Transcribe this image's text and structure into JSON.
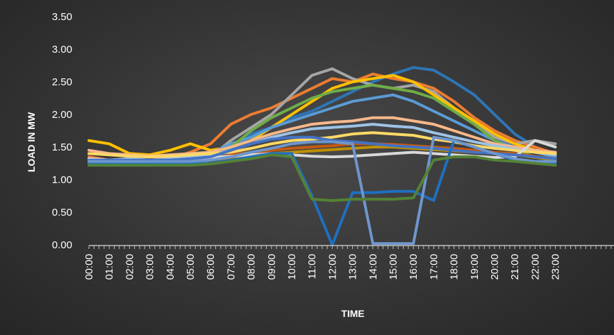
{
  "chart_data": {
    "type": "line",
    "xlabel": "TIME",
    "ylabel": "LOAD IN MW",
    "ylim": [
      0,
      3.5
    ],
    "yticks": [
      "0.00",
      "0.50",
      "1.00",
      "1.50",
      "2.00",
      "2.50",
      "3.00",
      "3.50"
    ],
    "xticks": [
      "00:00",
      "01:00",
      "02:00",
      "03:00",
      "04:00",
      "05:00",
      "06:00",
      "07:00",
      "08:00",
      "09:00",
      "10:00",
      "11:00",
      "12:00",
      "13:00",
      "14:00",
      "15:00",
      "16:00",
      "17:00",
      "18:00",
      "19:00",
      "20:00",
      "21:00",
      "22:00",
      "23:00"
    ],
    "grid": false,
    "legend": "none",
    "series": [
      {
        "color": "#2e75b6",
        "values": [
          1.28,
          1.25,
          1.26,
          1.24,
          1.3,
          1.32,
          1.3,
          1.45,
          1.7,
          1.8,
          1.95,
          2.05,
          2.2,
          2.35,
          2.5,
          2.62,
          2.72,
          2.68,
          2.5,
          2.3,
          2.0,
          1.7,
          1.5,
          1.35
        ]
      },
      {
        "color": "#ed7d31",
        "values": [
          1.35,
          1.3,
          1.32,
          1.3,
          1.33,
          1.42,
          1.55,
          1.85,
          2.0,
          2.1,
          2.25,
          2.4,
          2.55,
          2.5,
          2.62,
          2.55,
          2.5,
          2.4,
          2.2,
          1.95,
          1.75,
          1.6,
          1.5,
          1.4
        ]
      },
      {
        "color": "#a5a5a5",
        "values": [
          1.25,
          1.24,
          1.25,
          1.23,
          1.25,
          1.28,
          1.35,
          1.6,
          1.8,
          2.0,
          2.3,
          2.6,
          2.7,
          2.55,
          2.45,
          2.4,
          2.45,
          2.35,
          2.1,
          1.85,
          1.65,
          1.55,
          1.6,
          1.55
        ]
      },
      {
        "color": "#ffc000",
        "values": [
          1.6,
          1.55,
          1.4,
          1.38,
          1.45,
          1.55,
          1.45,
          1.5,
          1.6,
          1.8,
          2.0,
          2.2,
          2.4,
          2.5,
          2.55,
          2.6,
          2.5,
          2.3,
          2.1,
          1.9,
          1.7,
          1.55,
          1.45,
          1.4
        ]
      },
      {
        "color": "#5b9bd5",
        "values": [
          1.3,
          1.28,
          1.3,
          1.28,
          1.32,
          1.35,
          1.4,
          1.55,
          1.65,
          1.8,
          1.9,
          2.0,
          2.1,
          2.2,
          2.25,
          2.3,
          2.2,
          2.05,
          1.9,
          1.75,
          1.6,
          1.5,
          1.42,
          1.35
        ]
      },
      {
        "color": "#70ad47",
        "values": [
          1.25,
          1.22,
          1.23,
          1.22,
          1.24,
          1.26,
          1.3,
          1.5,
          1.75,
          1.95,
          2.1,
          2.25,
          2.35,
          2.4,
          2.45,
          2.4,
          2.35,
          2.25,
          2.05,
          1.85,
          1.6,
          1.45,
          1.35,
          1.3
        ]
      },
      {
        "color": "#f8b88b",
        "values": [
          1.45,
          1.4,
          1.38,
          1.36,
          1.38,
          1.4,
          1.42,
          1.5,
          1.6,
          1.7,
          1.78,
          1.85,
          1.88,
          1.9,
          1.95,
          1.95,
          1.9,
          1.85,
          1.75,
          1.65,
          1.55,
          1.5,
          1.45,
          1.42
        ]
      },
      {
        "color": "#9dc3e6",
        "values": [
          1.3,
          1.3,
          1.32,
          1.3,
          1.32,
          1.35,
          1.38,
          1.45,
          1.55,
          1.65,
          1.72,
          1.78,
          1.8,
          1.82,
          1.85,
          1.82,
          1.8,
          1.72,
          1.65,
          1.58,
          1.52,
          1.47,
          1.42,
          1.38
        ]
      },
      {
        "color": "#ffd966",
        "values": [
          1.4,
          1.38,
          1.36,
          1.35,
          1.36,
          1.38,
          1.4,
          1.42,
          1.48,
          1.55,
          1.6,
          1.62,
          1.65,
          1.7,
          1.72,
          1.7,
          1.68,
          1.62,
          1.58,
          1.52,
          1.48,
          1.45,
          1.42,
          1.4
        ]
      },
      {
        "color": "#c55a11",
        "values": [
          1.28,
          1.27,
          1.28,
          1.27,
          1.28,
          1.3,
          1.32,
          1.38,
          1.42,
          1.45,
          1.48,
          1.5,
          1.52,
          1.55,
          1.55,
          1.54,
          1.52,
          1.5,
          1.48,
          1.45,
          1.42,
          1.4,
          1.36,
          1.32
        ]
      },
      {
        "color": "#bf9000",
        "values": [
          1.26,
          1.25,
          1.26,
          1.25,
          1.26,
          1.28,
          1.3,
          1.34,
          1.38,
          1.4,
          1.42,
          1.44,
          1.46,
          1.48,
          1.5,
          1.5,
          1.48,
          1.46,
          1.44,
          1.42,
          1.4,
          1.38,
          1.34,
          1.3
        ]
      },
      {
        "color": "#d9d9d9",
        "values": [
          1.32,
          1.3,
          1.3,
          1.29,
          1.3,
          1.32,
          1.34,
          1.36,
          1.38,
          1.4,
          1.38,
          1.36,
          1.35,
          1.36,
          1.38,
          1.4,
          1.42,
          1.4,
          1.38,
          1.36,
          1.34,
          1.35,
          1.6,
          1.5
        ]
      },
      {
        "color": "#4472c4",
        "values": [
          1.3,
          1.3,
          1.3,
          1.3,
          1.3,
          1.32,
          1.35,
          1.45,
          1.55,
          1.62,
          1.65,
          1.65,
          1.6,
          1.58,
          1.55,
          1.52,
          1.5,
          1.48,
          1.45,
          1.42,
          1.4,
          1.38,
          1.35,
          1.32
        ]
      },
      {
        "color": "#1f6fbf",
        "values": [
          1.25,
          1.25,
          1.25,
          1.25,
          1.25,
          1.25,
          1.25,
          1.3,
          1.35,
          1.4,
          1.4,
          0.75,
          0.0,
          0.8,
          0.8,
          0.82,
          0.82,
          0.68,
          1.6,
          1.5,
          1.4,
          1.3,
          1.25,
          1.25
        ]
      },
      {
        "color": "#6e96cc",
        "values": [
          1.28,
          1.28,
          1.28,
          1.28,
          1.28,
          1.28,
          1.3,
          1.35,
          1.42,
          1.48,
          1.55,
          1.58,
          1.58,
          1.55,
          0.02,
          0.02,
          0.02,
          1.65,
          1.6,
          1.5,
          1.4,
          1.32,
          1.28,
          1.28
        ]
      },
      {
        "color": "#548235",
        "values": [
          1.22,
          1.22,
          1.22,
          1.22,
          1.22,
          1.22,
          1.24,
          1.28,
          1.32,
          1.38,
          1.35,
          0.7,
          0.68,
          0.7,
          0.7,
          0.7,
          0.72,
          1.3,
          1.35,
          1.35,
          1.3,
          1.28,
          1.25,
          1.22
        ]
      }
    ]
  }
}
